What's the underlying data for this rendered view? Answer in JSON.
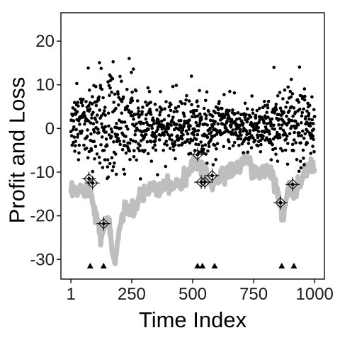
{
  "chart_data": {
    "type": "scatter",
    "xlabel": "Time Index",
    "ylabel": "Profit and Loss",
    "xlim": [
      -40,
      1040
    ],
    "ylim": [
      -34.5,
      26.5
    ],
    "xticks": [
      1,
      250,
      500,
      750,
      1000
    ],
    "yticks": [
      20,
      10,
      0,
      -10,
      -20,
      -30
    ],
    "grid": false,
    "legend": "none",
    "series": [
      {
        "kind": "var-band",
        "color": "#bebebe",
        "anchors": [
          [
            1,
            -15
          ],
          [
            25,
            -14.5
          ],
          [
            50,
            -13.5
          ],
          [
            75,
            -14
          ],
          [
            90,
            -16
          ],
          [
            100,
            -19
          ],
          [
            110,
            -21
          ],
          [
            125,
            -25
          ],
          [
            140,
            -22
          ],
          [
            150,
            -20
          ],
          [
            160,
            -23
          ],
          [
            170,
            -28
          ],
          [
            180,
            -31
          ],
          [
            195,
            -25
          ],
          [
            210,
            -20
          ],
          [
            230,
            -18
          ],
          [
            260,
            -19
          ],
          [
            280,
            -16
          ],
          [
            300,
            -15
          ],
          [
            330,
            -13
          ],
          [
            360,
            -14
          ],
          [
            390,
            -12
          ],
          [
            420,
            -13
          ],
          [
            450,
            -12
          ],
          [
            480,
            -11
          ],
          [
            500,
            -8
          ],
          [
            520,
            -8
          ],
          [
            540,
            -9
          ],
          [
            560,
            -11
          ],
          [
            575,
            -13
          ],
          [
            600,
            -12
          ],
          [
            625,
            -10
          ],
          [
            650,
            -10
          ],
          [
            680,
            -9
          ],
          [
            700,
            -8
          ],
          [
            720,
            -7
          ],
          [
            745,
            -9
          ],
          [
            770,
            -11
          ],
          [
            800,
            -9
          ],
          [
            820,
            -10
          ],
          [
            845,
            -13
          ],
          [
            860,
            -18
          ],
          [
            870,
            -21
          ],
          [
            880,
            -17
          ],
          [
            895,
            -14
          ],
          [
            910,
            -15
          ],
          [
            930,
            -13
          ],
          [
            950,
            -11
          ],
          [
            970,
            -9
          ],
          [
            990,
            -8.5
          ],
          [
            1000,
            -9
          ]
        ]
      },
      {
        "kind": "exceedances",
        "marker": "open-diamond-cross",
        "points": [
          [
            75,
            -11.5
          ],
          [
            90,
            -12.5
          ],
          [
            135,
            -21.8
          ],
          [
            520,
            -6
          ],
          [
            535,
            -12.3
          ],
          [
            550,
            -12.3
          ],
          [
            580,
            -10.8
          ],
          [
            860,
            -17
          ],
          [
            910,
            -12.8
          ]
        ]
      },
      {
        "kind": "exceedance-marks",
        "marker": "triangle",
        "y": -31.5,
        "x": [
          80,
          135,
          520,
          540,
          590,
          865,
          915
        ]
      }
    ]
  }
}
